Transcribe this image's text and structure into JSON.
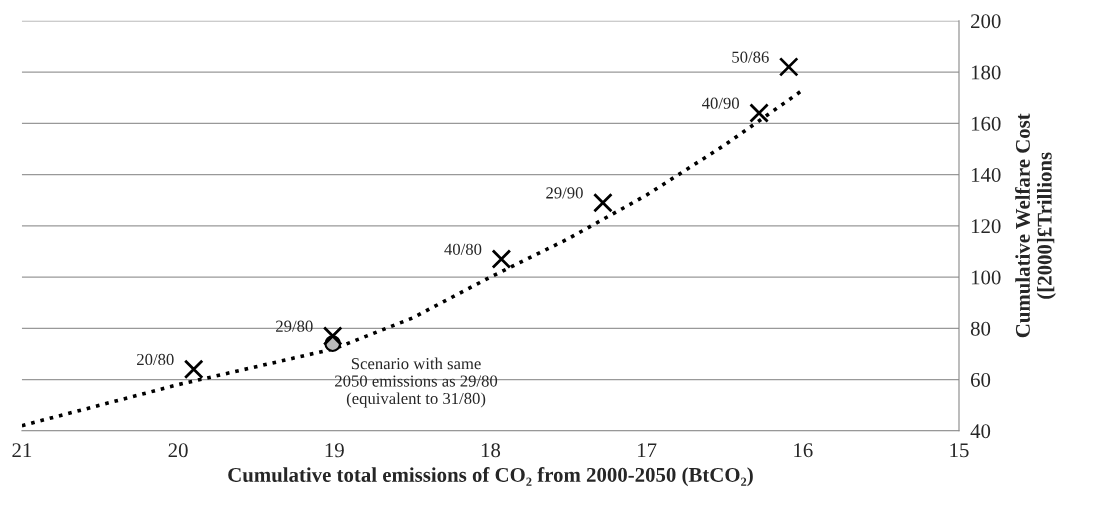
{
  "chart_data": {
    "type": "scatter",
    "xlabel": "Cumulative total emissions of CO₂ from 2000-2050 (BtCO₂)",
    "ylabel": "Cumulative Welfare Cost\n([2000]£Trillions",
    "xlim": [
      21,
      15
    ],
    "xticks": [
      21,
      20,
      19,
      18,
      17,
      16,
      15
    ],
    "ylim": [
      40,
      200
    ],
    "yticks": [
      40,
      60,
      80,
      100,
      120,
      140,
      160,
      180,
      200
    ],
    "grid": "y",
    "series": [
      {
        "type": "line",
        "color": "#000000",
        "line_style": "dotted",
        "x": [
          21,
          20.5,
          20,
          19.5,
          19,
          18.5,
          18,
          17.5,
          17,
          16.5,
          16
        ],
        "values": [
          42,
          50,
          58,
          65,
          72,
          84,
          100,
          115,
          132,
          151.5,
          173
        ]
      },
      {
        "color": "#000000",
        "marker": "cross",
        "x": [
          19.9,
          19.01,
          17.93,
          17.28,
          16.28,
          16.09
        ],
        "values": [
          64,
          77,
          107,
          129,
          164,
          182
        ]
      },
      {
        "type": "scatter",
        "color": "#000000",
        "marker": "circle",
        "x": [
          19.01
        ],
        "values": [
          74
        ]
      }
    ],
    "annotations": [
      {
        "text": "20/80",
        "x": 19.9,
        "y": 64
      },
      {
        "text": "29/80",
        "x": 19.01,
        "y": 77
      },
      {
        "text": "40/80",
        "x": 17.93,
        "y": 107
      },
      {
        "text": "29/90",
        "x": 17.28,
        "y": 129
      },
      {
        "text": "40/90",
        "x": 16.28,
        "y": 164
      },
      {
        "text": "50/86",
        "x": 16.09,
        "y": 182
      },
      {
        "text": "Scenario with same\n2050 emissions as 29/80\n(equivalent to 31/80)",
        "x": 19.01,
        "y": 74
      }
    ]
  }
}
